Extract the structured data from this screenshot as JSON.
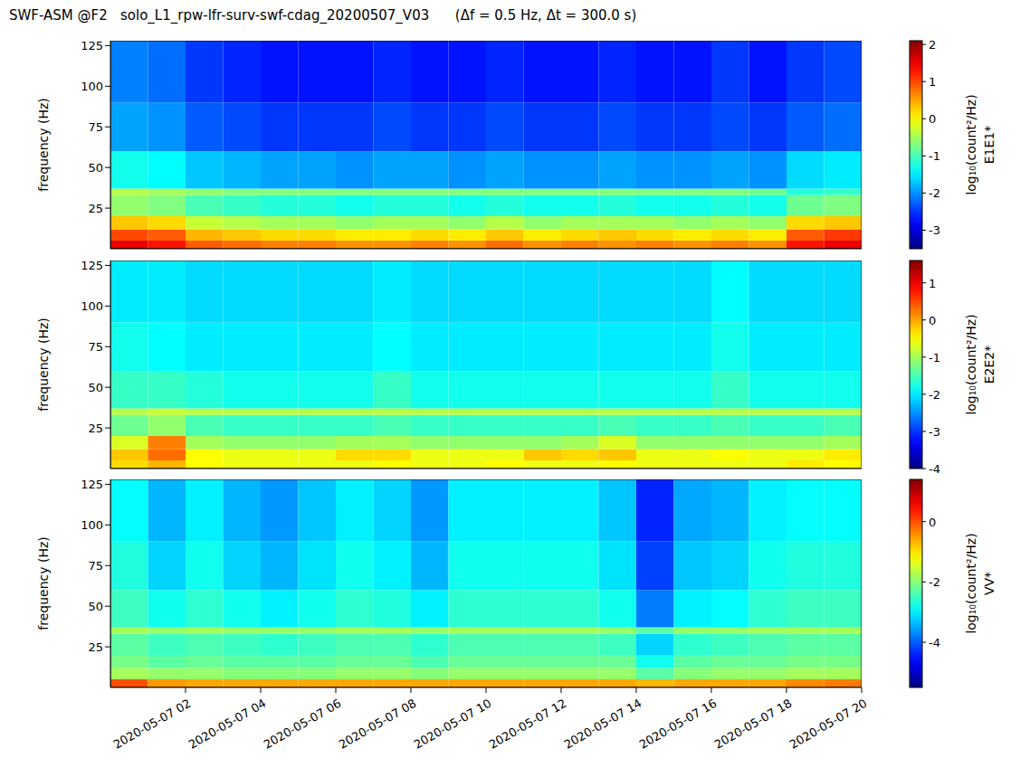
{
  "title": "SWF-ASM @F2   solo_L1_rpw-lfr-surv-swf-cdag_20200507_V03      (Δf = 0.5 Hz, Δt = 300.0 s)",
  "chart_data": [
    {
      "type": "heatmap",
      "y_label": "frequency (Hz)",
      "tick_labels": "y",
      "xlim": [
        0,
        20
      ],
      "xticks": [
        {
          "value": 2,
          "label": "2020-05-07 02"
        },
        {
          "value": 4,
          "label": "2020-05-07 04"
        },
        {
          "value": 6,
          "label": "2020-05-07 06"
        },
        {
          "value": 8,
          "label": "2020-05-07 08"
        },
        {
          "value": 10,
          "label": "2020-05-07 10"
        },
        {
          "value": 12,
          "label": "2020-05-07 12"
        },
        {
          "value": 14,
          "label": "2020-05-07 14"
        },
        {
          "value": 16,
          "label": "2020-05-07 16"
        },
        {
          "value": 18,
          "label": "2020-05-07 18"
        },
        {
          "value": 20,
          "label": "2020-05-07 20"
        }
      ],
      "ylim": [
        0,
        128
      ],
      "yticks": [
        25,
        50,
        75,
        100,
        125
      ],
      "x_edges": [
        0,
        1,
        2,
        3,
        4,
        5,
        6,
        7,
        8,
        9,
        10,
        11,
        12,
        13,
        14,
        15,
        16,
        17,
        18,
        19,
        20
      ],
      "y_edges": [
        0,
        5,
        12,
        20,
        33,
        37,
        60,
        90,
        128
      ],
      "cells": [
        [
          1.5,
          1.3,
          0.9,
          0.8,
          0.7,
          0.7,
          0.6,
          0.6,
          0.7,
          0.6,
          0.8,
          0.6,
          0.7,
          0.6,
          0.7,
          0.6,
          0.7,
          0.6,
          1.3,
          1.5
        ],
        [
          1.0,
          0.9,
          0.4,
          0.3,
          0.2,
          0.2,
          0.1,
          0.1,
          0.2,
          0.1,
          0.3,
          0.1,
          0.2,
          0.3,
          0.2,
          0.1,
          0.2,
          0.1,
          0.9,
          1.1
        ],
        [
          0.3,
          0.2,
          -0.3,
          -0.4,
          -0.5,
          -0.5,
          -0.6,
          -0.5,
          -0.5,
          -0.6,
          -0.4,
          -0.6,
          -0.5,
          -0.5,
          -0.5,
          -0.6,
          -0.5,
          -0.6,
          0.2,
          0.3
        ],
        [
          -0.6,
          -0.7,
          -1.0,
          -1.1,
          -1.2,
          -1.2,
          -1.3,
          -1.2,
          -1.2,
          -1.3,
          -1.2,
          -1.3,
          -1.3,
          -1.2,
          -1.3,
          -1.3,
          -1.2,
          -1.3,
          -0.8,
          -0.7
        ],
        [
          -0.4,
          -0.5,
          -0.6,
          -0.7,
          -0.7,
          -0.7,
          -0.7,
          -0.7,
          -0.7,
          -0.7,
          -0.7,
          -0.7,
          -0.7,
          -0.7,
          -0.7,
          -0.7,
          -0.7,
          -0.8,
          -1.2,
          -1.1
        ],
        [
          -1.3,
          -1.4,
          -1.7,
          -1.8,
          -1.9,
          -1.9,
          -2.0,
          -1.9,
          -1.9,
          -2.0,
          -1.9,
          -2.0,
          -2.0,
          -1.9,
          -2.0,
          -2.0,
          -1.9,
          -2.0,
          -1.6,
          -1.5
        ],
        [
          -1.9,
          -2.0,
          -2.3,
          -2.4,
          -2.5,
          -2.5,
          -2.5,
          -2.4,
          -2.5,
          -2.5,
          -2.4,
          -2.5,
          -2.5,
          -2.4,
          -2.5,
          -2.5,
          -2.4,
          -2.5,
          -2.3,
          -2.2
        ],
        [
          -2.1,
          -2.2,
          -2.5,
          -2.6,
          -2.7,
          -2.7,
          -2.7,
          -2.6,
          -2.7,
          -2.7,
          -2.6,
          -2.7,
          -2.7,
          -2.6,
          -2.7,
          -2.7,
          -2.5,
          -2.7,
          -2.5,
          -2.4
        ]
      ],
      "colorbar_label": "log₁₀(count²/Hz)",
      "colorbar_name": "E1E1*",
      "colorbar_range": [
        -3.5,
        2.1
      ],
      "colorbar_ticks": [
        -3,
        -2,
        -1,
        0,
        1,
        2
      ]
    },
    {
      "type": "heatmap",
      "y_label": "frequency (Hz)",
      "tick_labels": "y",
      "xlim": [
        0,
        20
      ],
      "xticks": [
        {
          "value": 2,
          "label": "2020-05-07 02"
        },
        {
          "value": 4,
          "label": "2020-05-07 04"
        },
        {
          "value": 6,
          "label": "2020-05-07 06"
        },
        {
          "value": 8,
          "label": "2020-05-07 08"
        },
        {
          "value": 10,
          "label": "2020-05-07 10"
        },
        {
          "value": 12,
          "label": "2020-05-07 12"
        },
        {
          "value": 14,
          "label": "2020-05-07 14"
        },
        {
          "value": 16,
          "label": "2020-05-07 16"
        },
        {
          "value": 18,
          "label": "2020-05-07 18"
        },
        {
          "value": 20,
          "label": "2020-05-07 20"
        }
      ],
      "ylim": [
        0,
        128
      ],
      "yticks": [
        25,
        50,
        75,
        100,
        125
      ],
      "x_edges": [
        0,
        1,
        2,
        3,
        4,
        5,
        6,
        7,
        8,
        9,
        10,
        11,
        12,
        13,
        14,
        15,
        16,
        17,
        18,
        19,
        20
      ],
      "y_edges": [
        0,
        5,
        12,
        20,
        33,
        37,
        60,
        90,
        128
      ],
      "cells": [
        [
          -0.3,
          -0.1,
          -0.5,
          -0.6,
          -0.6,
          -0.6,
          -0.6,
          -0.5,
          -0.6,
          -0.6,
          -0.5,
          -0.6,
          -0.6,
          -0.5,
          -0.6,
          -0.6,
          -0.6,
          -0.6,
          -0.4,
          -0.5
        ],
        [
          -0.2,
          0.3,
          -0.5,
          -0.6,
          -0.6,
          -0.6,
          -0.3,
          -0.3,
          -0.6,
          -0.6,
          -0.6,
          -0.2,
          -0.3,
          -0.2,
          -0.6,
          -0.6,
          -0.5,
          -0.6,
          -0.6,
          -0.4
        ],
        [
          -0.7,
          0.2,
          -1.0,
          -1.1,
          -1.1,
          -1.1,
          -1.0,
          -1.0,
          -1.1,
          -1.1,
          -1.1,
          -1.1,
          -1.0,
          -0.7,
          -1.1,
          -1.1,
          -1.1,
          -1.1,
          -1.1,
          -1.0
        ],
        [
          -1.3,
          -1.1,
          -1.5,
          -1.6,
          -1.6,
          -1.6,
          -1.6,
          -1.5,
          -1.6,
          -1.6,
          -1.6,
          -1.6,
          -1.6,
          -1.5,
          -1.6,
          -1.6,
          -1.5,
          -1.6,
          -1.6,
          -1.5
        ],
        [
          -0.9,
          -0.8,
          -0.9,
          -0.9,
          -0.9,
          -0.9,
          -0.9,
          -0.9,
          -0.9,
          -0.9,
          -0.9,
          -0.9,
          -0.9,
          -0.9,
          -0.9,
          -0.9,
          -0.9,
          -0.9,
          -0.9,
          -0.9
        ],
        [
          -1.6,
          -1.6,
          -1.7,
          -1.8,
          -1.8,
          -1.8,
          -1.8,
          -1.6,
          -1.8,
          -1.8,
          -1.8,
          -1.8,
          -1.8,
          -1.8,
          -1.8,
          -1.8,
          -1.6,
          -1.8,
          -1.8,
          -1.8
        ],
        [
          -1.8,
          -1.9,
          -2.0,
          -2.0,
          -2.0,
          -2.0,
          -2.0,
          -1.9,
          -2.0,
          -2.0,
          -2.0,
          -2.0,
          -2.0,
          -2.0,
          -2.0,
          -2.0,
          -1.8,
          -2.0,
          -2.0,
          -2.0
        ],
        [
          -2.0,
          -2.0,
          -2.1,
          -2.1,
          -2.1,
          -2.1,
          -2.1,
          -2.0,
          -2.1,
          -2.1,
          -2.1,
          -2.1,
          -2.1,
          -2.1,
          -2.1,
          -2.1,
          -1.9,
          -2.1,
          -2.1,
          -2.1
        ]
      ],
      "colorbar_label": "log₁₀(count²/Hz)",
      "colorbar_name": "E2E2*",
      "colorbar_range": [
        -4,
        1.6
      ],
      "colorbar_ticks": [
        -4,
        -3,
        -2,
        -1,
        0,
        1
      ]
    },
    {
      "type": "heatmap",
      "y_label": "frequency (Hz)",
      "xlim": [
        0,
        20
      ],
      "xticks": [
        {
          "value": 2,
          "label": "2020-05-07 02"
        },
        {
          "value": 4,
          "label": "2020-05-07 04"
        },
        {
          "value": 6,
          "label": "2020-05-07 06"
        },
        {
          "value": 8,
          "label": "2020-05-07 08"
        },
        {
          "value": 10,
          "label": "2020-05-07 10"
        },
        {
          "value": 12,
          "label": "2020-05-07 12"
        },
        {
          "value": 14,
          "label": "2020-05-07 14"
        },
        {
          "value": 16,
          "label": "2020-05-07 16"
        },
        {
          "value": 18,
          "label": "2020-05-07 18"
        },
        {
          "value": 20,
          "label": "2020-05-07 20"
        }
      ],
      "ylim": [
        0,
        128
      ],
      "yticks": [
        25,
        50,
        75,
        100,
        125
      ],
      "x_edges": [
        0,
        1,
        2,
        3,
        4,
        5,
        6,
        7,
        8,
        9,
        10,
        11,
        12,
        13,
        14,
        15,
        16,
        17,
        18,
        19,
        20
      ],
      "y_edges": [
        0,
        5,
        12,
        20,
        33,
        37,
        60,
        90,
        128
      ],
      "cells": [
        [
          0.0,
          -0.5,
          -0.6,
          -0.6,
          -0.6,
          -0.6,
          -0.6,
          -0.6,
          -0.6,
          -0.6,
          -0.6,
          -0.6,
          -0.6,
          -0.6,
          -0.7,
          -0.6,
          -0.6,
          -0.6,
          -0.4,
          -0.3
        ],
        [
          -1.8,
          -1.9,
          -1.9,
          -2.0,
          -2.0,
          -2.0,
          -1.9,
          -1.9,
          -2.0,
          -1.9,
          -1.9,
          -1.9,
          -1.9,
          -1.9,
          -2.3,
          -2.0,
          -1.9,
          -1.9,
          -1.8,
          -1.8
        ],
        [
          -2.1,
          -2.3,
          -2.2,
          -2.3,
          -2.3,
          -2.3,
          -2.2,
          -2.2,
          -2.4,
          -2.2,
          -2.2,
          -2.2,
          -2.2,
          -2.2,
          -2.8,
          -2.3,
          -2.2,
          -2.2,
          -2.1,
          -2.1
        ],
        [
          -2.3,
          -2.5,
          -2.4,
          -2.5,
          -2.6,
          -2.5,
          -2.4,
          -2.4,
          -2.6,
          -2.4,
          -2.4,
          -2.4,
          -2.4,
          -2.5,
          -3.2,
          -2.6,
          -2.5,
          -2.4,
          -2.3,
          -2.3
        ],
        [
          -1.8,
          -1.9,
          -1.8,
          -1.9,
          -1.9,
          -1.9,
          -1.8,
          -1.8,
          -1.9,
          -1.8,
          -1.8,
          -1.8,
          -1.8,
          -1.9,
          -2.3,
          -1.9,
          -1.9,
          -1.8,
          -1.8,
          -1.8
        ],
        [
          -2.5,
          -2.8,
          -2.6,
          -2.8,
          -3.0,
          -2.8,
          -2.6,
          -2.7,
          -3.0,
          -2.6,
          -2.6,
          -2.6,
          -2.6,
          -2.8,
          -3.8,
          -3.0,
          -2.9,
          -2.6,
          -2.5,
          -2.5
        ],
        [
          -2.7,
          -3.2,
          -2.8,
          -3.2,
          -3.4,
          -3.1,
          -2.8,
          -3.0,
          -3.4,
          -2.8,
          -2.8,
          -2.8,
          -2.8,
          -3.1,
          -4.2,
          -3.3,
          -3.2,
          -2.8,
          -2.7,
          -2.7
        ],
        [
          -2.9,
          -3.4,
          -3.0,
          -3.4,
          -3.6,
          -3.3,
          -3.0,
          -3.2,
          -3.6,
          -3.0,
          -3.0,
          -3.0,
          -3.0,
          -3.3,
          -4.4,
          -3.5,
          -3.4,
          -3.0,
          -2.9,
          -2.9
        ]
      ],
      "colorbar_label": "log₁₀(count²/Hz)",
      "colorbar_name": "VV*",
      "colorbar_range": [
        -5.5,
        1.4
      ],
      "colorbar_ticks": [
        -4,
        -2,
        0
      ]
    }
  ]
}
